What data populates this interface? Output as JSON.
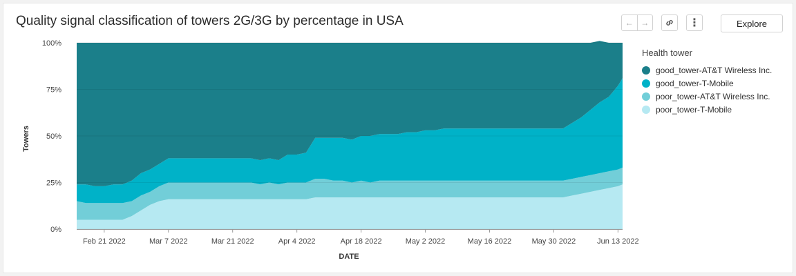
{
  "title": "Quality signal classification of towers 2G/3G by percentage in USA",
  "toolbar": {
    "prev_icon": "←",
    "next_icon": "→",
    "link_icon": "link-icon",
    "more_icon": "⋮",
    "explore_label": "Explore"
  },
  "legend": {
    "title": "Health tower",
    "items": [
      {
        "label": "good_tower-AT&T Wireless Inc.",
        "color": "#1b7f8a"
      },
      {
        "label": "good_tower-T-Mobile",
        "color": "#00b2c8"
      },
      {
        "label": "poor_tower-AT&T Wireless Inc.",
        "color": "#72ced8"
      },
      {
        "label": "poor_tower-T-Mobile",
        "color": "#b6e9f2"
      }
    ]
  },
  "chart_data": {
    "type": "area",
    "stacked": true,
    "normalized": true,
    "title": "Quality signal classification of towers 2G/3G by percentage in USA",
    "xlabel": "DATE",
    "ylabel": "Towers",
    "x_start": "2022-02-15",
    "x_end": "2022-06-14",
    "ylim": [
      0,
      100
    ],
    "yticks": [
      "0%",
      "25%",
      "50%",
      "75%",
      "100%"
    ],
    "ytick_values": [
      0,
      25,
      50,
      75,
      100
    ],
    "xticks": [
      {
        "label": "Feb 21 2022",
        "day": 6
      },
      {
        "label": "Mar 7 2022",
        "day": 20
      },
      {
        "label": "Mar 21 2022",
        "day": 34
      },
      {
        "label": "Apr 4 2022",
        "day": 48
      },
      {
        "label": "Apr 18 2022",
        "day": 62
      },
      {
        "label": "May 2 2022",
        "day": 76
      },
      {
        "label": "May 16 2022",
        "day": 90
      },
      {
        "label": "May 30 2022",
        "day": 104
      },
      {
        "label": "Jun 13 2022",
        "day": 118
      }
    ],
    "days": [
      0,
      2,
      4,
      6,
      8,
      10,
      12,
      14,
      16,
      18,
      20,
      22,
      24,
      26,
      28,
      30,
      32,
      34,
      36,
      38,
      40,
      42,
      44,
      46,
      48,
      50,
      52,
      54,
      56,
      58,
      60,
      62,
      64,
      66,
      68,
      70,
      72,
      74,
      76,
      78,
      80,
      82,
      84,
      86,
      88,
      90,
      92,
      94,
      96,
      98,
      100,
      102,
      104,
      106,
      108,
      110,
      112,
      114,
      116,
      118,
      119
    ],
    "series": [
      {
        "name": "poor_tower-T-Mobile",
        "values": [
          5,
          5,
          5,
          5,
          5,
          5,
          7,
          10,
          13,
          15,
          16,
          16,
          16,
          16,
          16,
          16,
          16,
          16,
          16,
          16,
          16,
          16,
          16,
          16,
          16,
          16,
          17,
          17,
          17,
          17,
          17,
          17,
          17,
          17,
          17,
          17,
          17,
          17,
          17,
          17,
          17,
          17,
          17,
          17,
          17,
          17,
          17,
          17,
          17,
          17,
          17,
          17,
          17,
          17,
          18,
          19,
          20,
          21,
          22,
          23,
          24
        ]
      },
      {
        "name": "poor_tower-AT&T Wireless Inc.",
        "values": [
          10,
          9,
          9,
          9,
          9,
          9,
          8,
          8,
          7,
          8,
          9,
          9,
          9,
          9,
          9,
          9,
          9,
          9,
          9,
          9,
          8,
          9,
          8,
          9,
          9,
          9,
          10,
          10,
          9,
          9,
          8,
          9,
          8,
          9,
          9,
          9,
          9,
          9,
          9,
          9,
          9,
          9,
          9,
          9,
          9,
          9,
          9,
          9,
          9,
          9,
          9,
          9,
          9,
          9,
          9,
          9,
          9,
          9,
          9,
          9,
          9
        ]
      },
      {
        "name": "good_tower-T-Mobile",
        "values": [
          9,
          10,
          9,
          9,
          10,
          10,
          11,
          12,
          12,
          12,
          13,
          13,
          13,
          13,
          13,
          13,
          13,
          13,
          13,
          13,
          13,
          13,
          13,
          15,
          15,
          16,
          22,
          22,
          23,
          23,
          23,
          24,
          25,
          25,
          25,
          25,
          26,
          26,
          27,
          27,
          28,
          28,
          28,
          28,
          28,
          28,
          28,
          28,
          28,
          28,
          28,
          28,
          28,
          28,
          30,
          32,
          35,
          38,
          40,
          45,
          48
        ]
      },
      {
        "name": "good_tower-AT&T Wireless Inc.",
        "values": [
          76,
          76,
          77,
          77,
          76,
          76,
          74,
          70,
          68,
          65,
          62,
          62,
          62,
          62,
          62,
          62,
          62,
          62,
          62,
          62,
          63,
          62,
          63,
          60,
          60,
          59,
          51,
          51,
          51,
          51,
          52,
          50,
          50,
          49,
          49,
          49,
          48,
          48,
          47,
          47,
          46,
          46,
          46,
          46,
          46,
          46,
          46,
          46,
          46,
          46,
          46,
          46,
          46,
          46,
          43,
          40,
          36,
          33,
          29,
          23,
          19
        ]
      }
    ]
  }
}
